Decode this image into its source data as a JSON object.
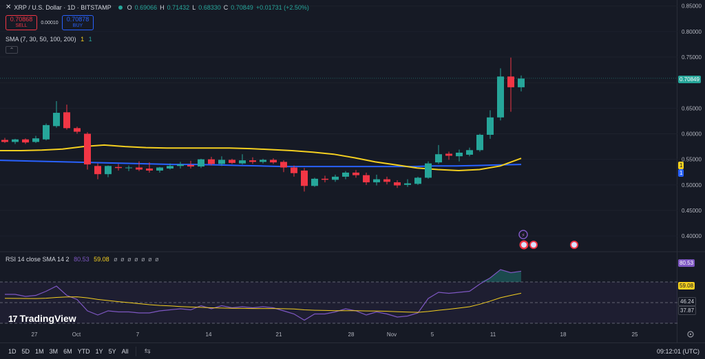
{
  "header": {
    "symbol": "XRP / U.S. Dollar · 1D · BITSTAMP",
    "open_label": "O",
    "open": "0.69066",
    "high_label": "H",
    "high": "0.71432",
    "low_label": "L",
    "low": "0.68330",
    "close_label": "C",
    "close": "0.70849",
    "change": "+0.01731 (+2.50%)"
  },
  "trade": {
    "sell_price": "0.70868",
    "sell_label": "SELL",
    "spread": "0.00010",
    "buy_price": "0.70878",
    "buy_label": "BUY"
  },
  "sma": {
    "label": "SMA (7, 30, 50, 100, 200)",
    "val1": "1",
    "val2": "1"
  },
  "rsi": {
    "label": "RSI 14 close SMA 14 2",
    "value": "80.53",
    "sma_value": "59.08",
    "extra": "ø ø ø ø ø ø ø",
    "tag_rsi": "80.53",
    "tag_sma": "59.08",
    "tag_lower": "46.24",
    "tag_lowest": "37.87"
  },
  "price_axis": [
    "0.85000",
    "0.80000",
    "0.75000",
    "0.70849",
    "0.65000",
    "0.60000",
    "0.55000",
    "0.50000",
    "0.45000",
    "0.40000"
  ],
  "price_axis_ticks": [
    "0.85000",
    "0.80000",
    "0.75000",
    "0.70000",
    "0.65000",
    "0.60000",
    "0.55000",
    "0.50000",
    "0.45000",
    "0.40000"
  ],
  "price_tags": {
    "current": "0.70849",
    "sma_yellow": "1",
    "sma_blue": "1"
  },
  "date_axis": [
    "27",
    "Oct",
    "7",
    "14",
    "21",
    "28",
    "Nov",
    "5",
    "11",
    "18",
    "25"
  ],
  "logo": {
    "mark": "17",
    "text": "TradingView"
  },
  "bottombar": {
    "timeframes": [
      "1D",
      "5D",
      "1M",
      "3M",
      "6M",
      "YTD",
      "1Y",
      "5Y",
      "All"
    ],
    "clock": "09:12:01 (UTC)"
  },
  "colors": {
    "up": "#26a69a",
    "down": "#f23645",
    "sma_yellow": "#f5d020",
    "sma_blue": "#2962ff",
    "rsi": "#7e57c2"
  },
  "chart_data": {
    "type": "candlestick",
    "ylim": [
      0.38,
      0.855
    ],
    "candles": [
      {
        "o": 0.588,
        "h": 0.592,
        "l": 0.582,
        "c": 0.584
      },
      {
        "o": 0.584,
        "h": 0.59,
        "l": 0.58,
        "c": 0.589
      },
      {
        "o": 0.589,
        "h": 0.591,
        "l": 0.58,
        "c": 0.583
      },
      {
        "o": 0.584,
        "h": 0.596,
        "l": 0.582,
        "c": 0.591
      },
      {
        "o": 0.589,
        "h": 0.62,
        "l": 0.587,
        "c": 0.617
      },
      {
        "o": 0.615,
        "h": 0.664,
        "l": 0.612,
        "c": 0.641
      },
      {
        "o": 0.642,
        "h": 0.657,
        "l": 0.608,
        "c": 0.611
      },
      {
        "o": 0.611,
        "h": 0.614,
        "l": 0.6,
        "c": 0.604
      },
      {
        "o": 0.6,
        "h": 0.603,
        "l": 0.53,
        "c": 0.54
      },
      {
        "o": 0.537,
        "h": 0.542,
        "l": 0.511,
        "c": 0.521
      },
      {
        "o": 0.521,
        "h": 0.538,
        "l": 0.515,
        "c": 0.537
      },
      {
        "o": 0.535,
        "h": 0.541,
        "l": 0.528,
        "c": 0.533
      },
      {
        "o": 0.533,
        "h": 0.538,
        "l": 0.527,
        "c": 0.534
      },
      {
        "o": 0.534,
        "h": 0.546,
        "l": 0.527,
        "c": 0.53
      },
      {
        "o": 0.532,
        "h": 0.544,
        "l": 0.524,
        "c": 0.528
      },
      {
        "o": 0.528,
        "h": 0.535,
        "l": 0.524,
        "c": 0.534
      },
      {
        "o": 0.532,
        "h": 0.542,
        "l": 0.53,
        "c": 0.537
      },
      {
        "o": 0.537,
        "h": 0.545,
        "l": 0.532,
        "c": 0.54
      },
      {
        "o": 0.539,
        "h": 0.547,
        "l": 0.532,
        "c": 0.536
      },
      {
        "o": 0.536,
        "h": 0.551,
        "l": 0.533,
        "c": 0.55
      },
      {
        "o": 0.55,
        "h": 0.555,
        "l": 0.538,
        "c": 0.541
      },
      {
        "o": 0.541,
        "h": 0.556,
        "l": 0.537,
        "c": 0.549
      },
      {
        "o": 0.549,
        "h": 0.551,
        "l": 0.541,
        "c": 0.543
      },
      {
        "o": 0.542,
        "h": 0.56,
        "l": 0.54,
        "c": 0.548
      },
      {
        "o": 0.548,
        "h": 0.554,
        "l": 0.541,
        "c": 0.545
      },
      {
        "o": 0.545,
        "h": 0.551,
        "l": 0.542,
        "c": 0.549
      },
      {
        "o": 0.549,
        "h": 0.552,
        "l": 0.541,
        "c": 0.544
      },
      {
        "o": 0.545,
        "h": 0.548,
        "l": 0.525,
        "c": 0.534
      },
      {
        "o": 0.534,
        "h": 0.538,
        "l": 0.516,
        "c": 0.523
      },
      {
        "o": 0.528,
        "h": 0.533,
        "l": 0.487,
        "c": 0.498
      },
      {
        "o": 0.498,
        "h": 0.514,
        "l": 0.496,
        "c": 0.512
      },
      {
        "o": 0.512,
        "h": 0.518,
        "l": 0.505,
        "c": 0.51
      },
      {
        "o": 0.51,
        "h": 0.52,
        "l": 0.506,
        "c": 0.516
      },
      {
        "o": 0.516,
        "h": 0.527,
        "l": 0.511,
        "c": 0.524
      },
      {
        "o": 0.524,
        "h": 0.529,
        "l": 0.514,
        "c": 0.519
      },
      {
        "o": 0.519,
        "h": 0.524,
        "l": 0.5,
        "c": 0.505
      },
      {
        "o": 0.505,
        "h": 0.52,
        "l": 0.499,
        "c": 0.511
      },
      {
        "o": 0.511,
        "h": 0.516,
        "l": 0.501,
        "c": 0.506
      },
      {
        "o": 0.505,
        "h": 0.509,
        "l": 0.494,
        "c": 0.499
      },
      {
        "o": 0.5,
        "h": 0.511,
        "l": 0.496,
        "c": 0.503
      },
      {
        "o": 0.502,
        "h": 0.516,
        "l": 0.5,
        "c": 0.514
      },
      {
        "o": 0.514,
        "h": 0.546,
        "l": 0.512,
        "c": 0.542
      },
      {
        "o": 0.544,
        "h": 0.578,
        "l": 0.541,
        "c": 0.56
      },
      {
        "o": 0.561,
        "h": 0.565,
        "l": 0.549,
        "c": 0.557
      },
      {
        "o": 0.556,
        "h": 0.569,
        "l": 0.546,
        "c": 0.563
      },
      {
        "o": 0.559,
        "h": 0.573,
        "l": 0.556,
        "c": 0.568
      },
      {
        "o": 0.568,
        "h": 0.6,
        "l": 0.565,
        "c": 0.598
      },
      {
        "o": 0.598,
        "h": 0.646,
        "l": 0.59,
        "c": 0.632
      },
      {
        "o": 0.632,
        "h": 0.728,
        "l": 0.626,
        "c": 0.712
      },
      {
        "o": 0.712,
        "h": 0.749,
        "l": 0.643,
        "c": 0.691
      },
      {
        "o": 0.691,
        "h": 0.714,
        "l": 0.683,
        "c": 0.708
      }
    ],
    "sma_yellow": [
      0.567,
      0.567,
      0.568,
      0.57,
      0.575,
      0.578,
      0.575,
      0.573,
      0.572,
      0.572,
      0.572,
      0.572,
      0.571,
      0.569,
      0.567,
      0.564,
      0.56,
      0.553,
      0.545,
      0.539,
      0.533,
      0.53,
      0.528,
      0.53,
      0.537,
      0.552
    ],
    "sma_blue": [
      0.548,
      0.547,
      0.546,
      0.545,
      0.544,
      0.543,
      0.542,
      0.541,
      0.54,
      0.54,
      0.539,
      0.538,
      0.537,
      0.536,
      0.536,
      0.536,
      0.536,
      0.536,
      0.536,
      0.536,
      0.537,
      0.537,
      0.538,
      0.539,
      0.54
    ],
    "rsi": [
      58,
      58,
      56,
      57,
      61,
      66,
      57,
      53,
      42,
      38,
      42,
      41,
      41,
      40,
      40,
      42,
      43,
      44,
      43,
      47,
      44,
      47,
      45,
      46,
      45,
      46,
      45,
      42,
      39,
      33,
      39,
      39,
      41,
      44,
      42,
      38,
      41,
      39,
      36,
      37,
      40,
      54,
      60,
      59,
      60,
      61,
      68,
      74,
      82,
      79,
      80.5
    ],
    "rsi_sma": [
      54.2,
      54.1,
      54.0,
      53.9,
      54.3,
      55.0,
      55.5,
      55.6,
      54.6,
      53.1,
      52.0,
      50.9,
      50.0,
      49.0,
      48.0,
      47.3,
      46.8,
      46.2,
      45.7,
      45.4,
      45.0,
      44.7,
      44.5,
      44.4,
      44.3,
      44.3,
      44.3,
      44.1,
      43.8,
      43.0,
      42.6,
      42.4,
      42.2,
      42.2,
      42.2,
      41.9,
      41.8,
      41.6,
      41.2,
      40.8,
      40.6,
      41.4,
      42.6,
      43.6,
      44.7,
      46.0,
      48.5,
      51.5,
      54.7,
      57.0,
      59.08
    ],
    "rsi_ylim": [
      30,
      90
    ],
    "rsi_bands": [
      70,
      50,
      30
    ]
  }
}
